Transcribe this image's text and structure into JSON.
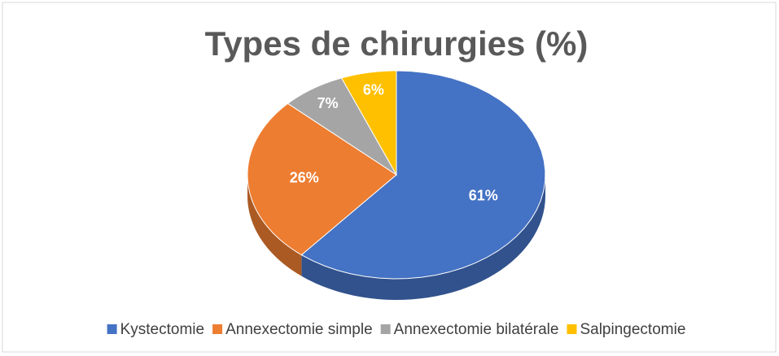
{
  "chart_data": {
    "type": "pie",
    "title": "Types de chirurgies (%)",
    "categories": [
      "Kystectomie",
      "Annexectomie simple",
      "Annexectomie bilatérale",
      "Salpingectomie"
    ],
    "values": [
      61,
      26,
      7,
      6
    ],
    "value_labels": [
      "61%",
      "26%",
      "7%",
      "6%"
    ],
    "colors": [
      "#4472c4",
      "#ed7d31",
      "#a5a5a5",
      "#ffc000"
    ],
    "legend": "bottom"
  }
}
